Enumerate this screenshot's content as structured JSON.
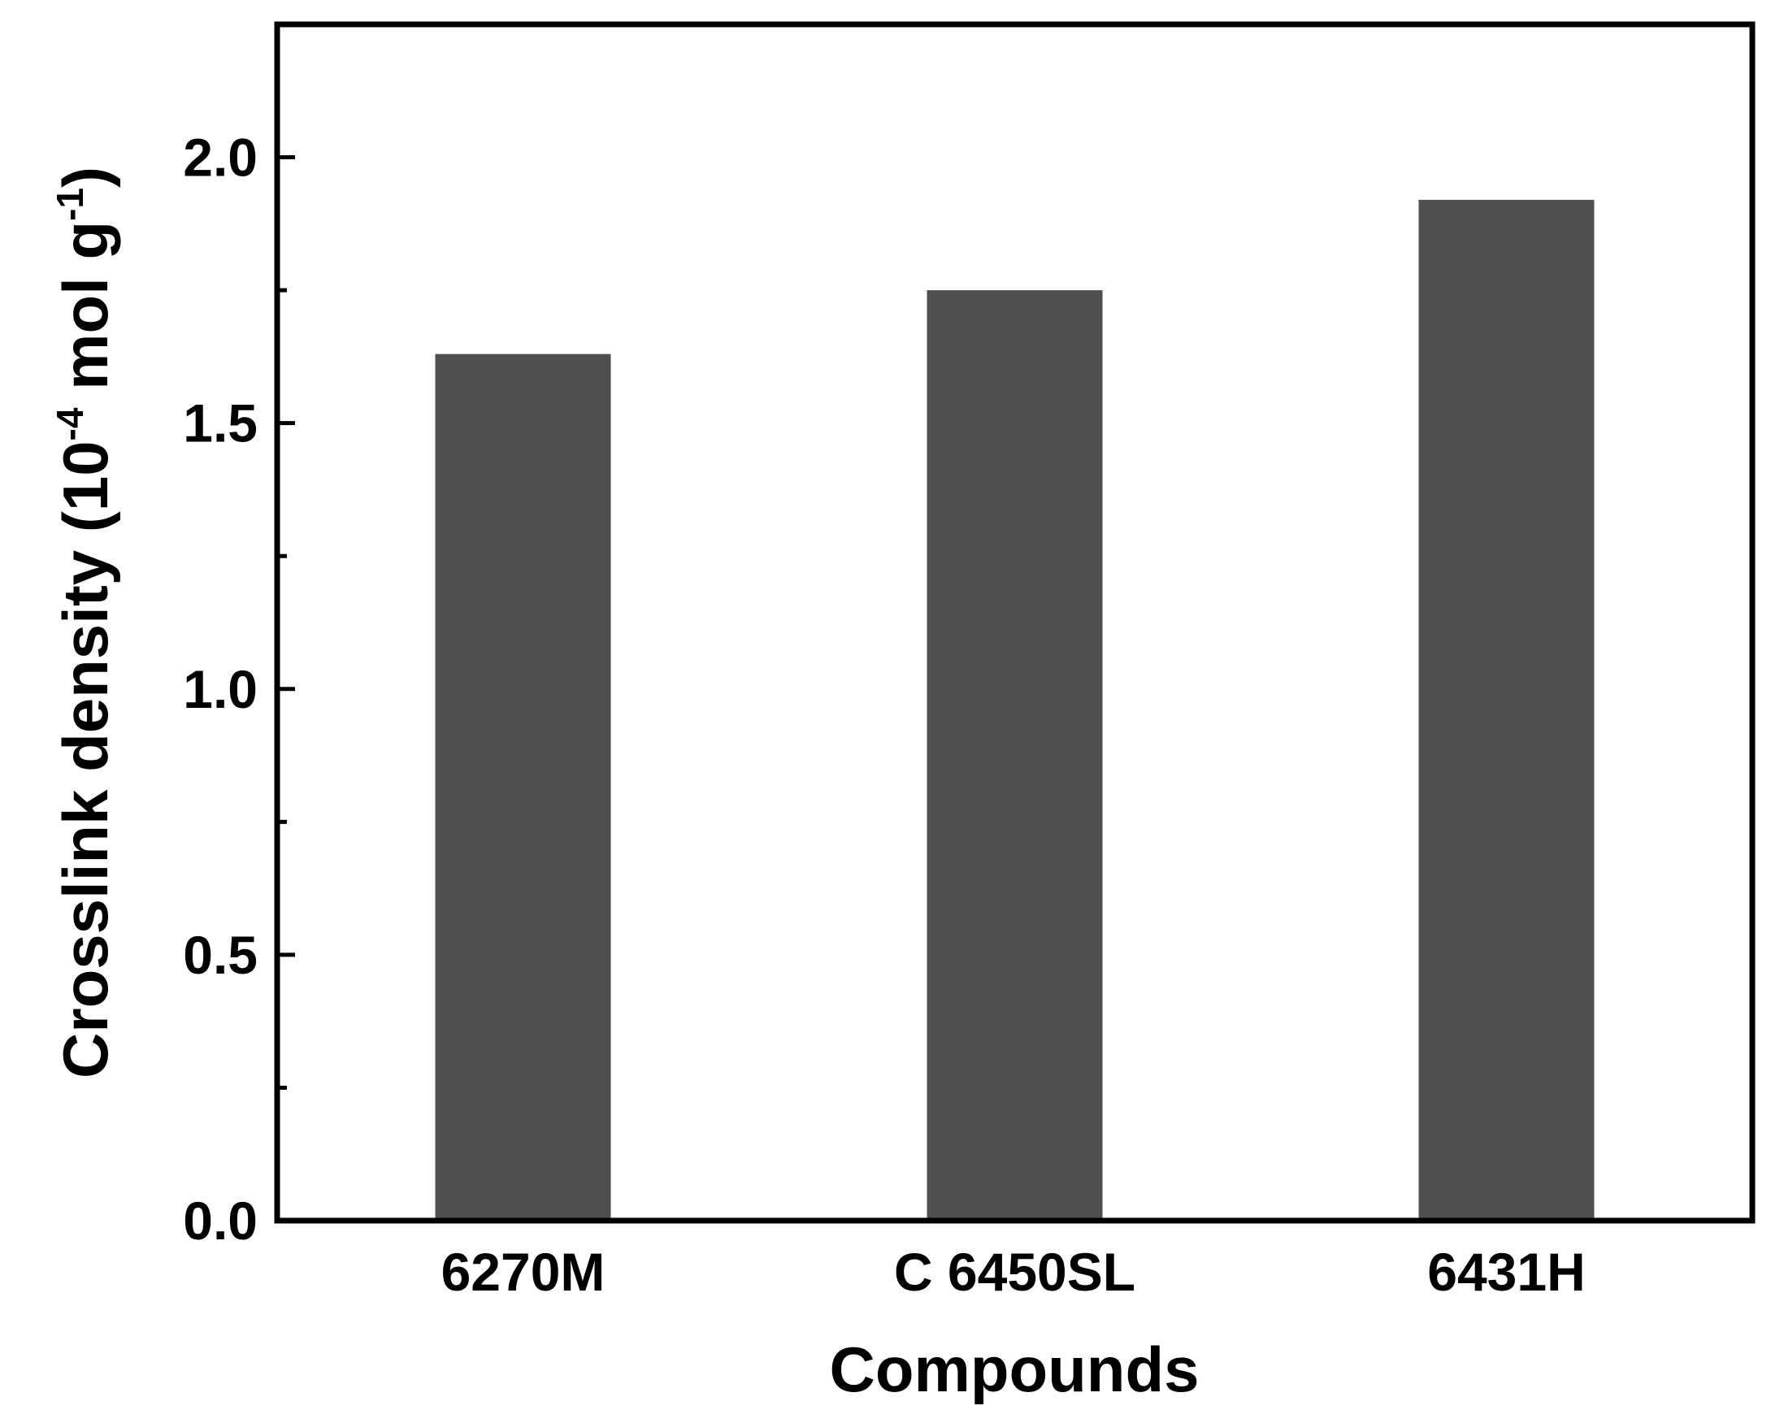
{
  "chart_data": {
    "type": "bar",
    "title": "",
    "xlabel": "Compounds",
    "ylabel": {
      "prefix": "Crosslink density (10",
      "exp1": "-4",
      "middle": " mol g",
      "exp2": "-1",
      "suffix": ")"
    },
    "categories": [
      "6270M",
      "C 6450SL",
      "6431H"
    ],
    "values": [
      1.63,
      1.75,
      1.92
    ],
    "ylim": [
      0,
      2.25
    ],
    "yticks": [
      0.0,
      0.5,
      1.0,
      1.5,
      2.0
    ],
    "ytick_labels": [
      "0.0",
      "0.5",
      "1.0",
      "1.5",
      "2.0"
    ],
    "minor_tick_step": 0.25,
    "grid": false,
    "legend": "none",
    "bar_color": "#4f4f4f"
  }
}
